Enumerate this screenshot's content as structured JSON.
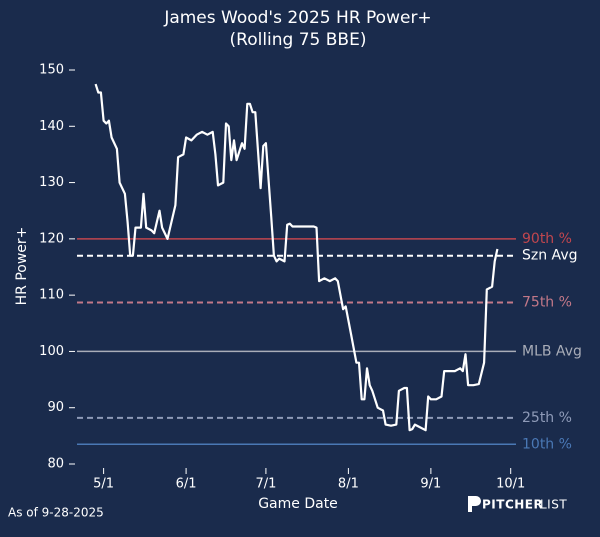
{
  "chart_data": {
    "type": "line",
    "title": "James Wood's 2025 HR Power+",
    "subtitle": "(Rolling 75 BBE)",
    "xlabel": "Game Date",
    "ylabel": "HR Power+",
    "color": "#ffffff",
    "x": [
      "4/28",
      "4/29",
      "4/30",
      "5/1",
      "5/2",
      "5/3",
      "5/4",
      "5/6",
      "5/7",
      "5/9",
      "5/10",
      "5/11",
      "5/12",
      "5/13",
      "5/15",
      "5/16",
      "5/17",
      "5/19",
      "5/20",
      "5/22",
      "5/23",
      "5/25",
      "5/28",
      "5/29",
      "5/31",
      "6/1",
      "6/3",
      "6/5",
      "6/7",
      "6/9",
      "6/11",
      "6/12",
      "6/13",
      "6/15",
      "6/16",
      "6/17",
      "6/18",
      "6/19",
      "6/20",
      "6/22",
      "6/23",
      "6/24",
      "6/25",
      "6/26",
      "6/27",
      "6/29",
      "6/30",
      "7/1",
      "7/3",
      "7/4",
      "7/5",
      "7/6",
      "7/8",
      "7/9",
      "7/10",
      "7/11",
      "7/15",
      "7/19",
      "7/20",
      "7/21",
      "7/23",
      "7/25",
      "7/27",
      "7/28",
      "7/30",
      "7/31",
      "8/2",
      "8/4",
      "8/5",
      "8/6",
      "8/7",
      "8/8",
      "8/9",
      "8/10",
      "8/12",
      "8/14",
      "8/15",
      "8/17",
      "8/19",
      "8/20",
      "8/22",
      "8/23",
      "8/24",
      "8/25",
      "8/26",
      "8/28",
      "8/30",
      "8/31",
      "9/1",
      "9/3",
      "9/5",
      "9/6",
      "9/10",
      "9/12",
      "9/13",
      "9/14",
      "9/15",
      "9/17",
      "9/19",
      "9/21",
      "9/22",
      "9/24",
      "9/25",
      "9/26"
    ],
    "values": [
      147.5,
      146,
      146,
      141,
      140.5,
      141,
      138,
      136,
      130,
      128,
      123,
      117,
      117,
      122,
      122,
      128,
      122,
      121.5,
      121,
      125,
      122,
      120,
      126,
      134.5,
      135,
      138,
      137.5,
      138.5,
      139,
      138.5,
      139,
      135,
      129.5,
      130,
      140.5,
      140,
      134,
      137.5,
      134,
      137,
      136,
      144,
      144,
      142.5,
      142.5,
      129,
      136.5,
      137,
      124,
      117,
      116,
      116.5,
      116,
      122.5,
      122.7,
      122.2,
      122.2,
      122.2,
      122,
      112.5,
      113,
      112.5,
      113,
      112.5,
      107.5,
      108,
      103,
      98,
      98,
      91.5,
      91.5,
      97,
      94,
      93,
      90,
      89.5,
      87,
      86.8,
      87,
      93,
      93.5,
      93.5,
      86,
      86.2,
      87,
      86.5,
      86,
      92,
      91.5,
      91.5,
      92,
      96.5,
      96.5,
      97,
      96.5,
      99.5,
      94,
      94,
      94.2,
      98,
      111,
      111.5,
      116,
      118.2
    ],
    "xlim": [
      "4/21",
      "10/6"
    ],
    "xticks": [
      "5/1",
      "6/1",
      "7/1",
      "8/1",
      "9/1",
      "10/1"
    ],
    "ylim": [
      80,
      150
    ],
    "yticks": [
      80,
      90,
      100,
      110,
      120,
      130,
      140,
      150
    ],
    "reference_lines": [
      {
        "label": "90th %",
        "value": 120,
        "color": "#c0464e",
        "dashed": false
      },
      {
        "label": "Szn Avg",
        "value": 117,
        "color": "#ffffff",
        "dashed": true
      },
      {
        "label": "75th %",
        "value": 108.7,
        "color": "#c27888",
        "dashed": true
      },
      {
        "label": "MLB Avg",
        "value": 100,
        "color": "#a9adb8",
        "dashed": false
      },
      {
        "label": "25th %",
        "value": 88.2,
        "color": "#8f9bb8",
        "dashed": true
      },
      {
        "label": "10th %",
        "value": 83.5,
        "color": "#4a78b5",
        "dashed": false
      }
    ]
  },
  "footer": {
    "note": "As of 9-28-2025",
    "brand_bold": "PITCHER",
    "brand_light": "LIST"
  }
}
